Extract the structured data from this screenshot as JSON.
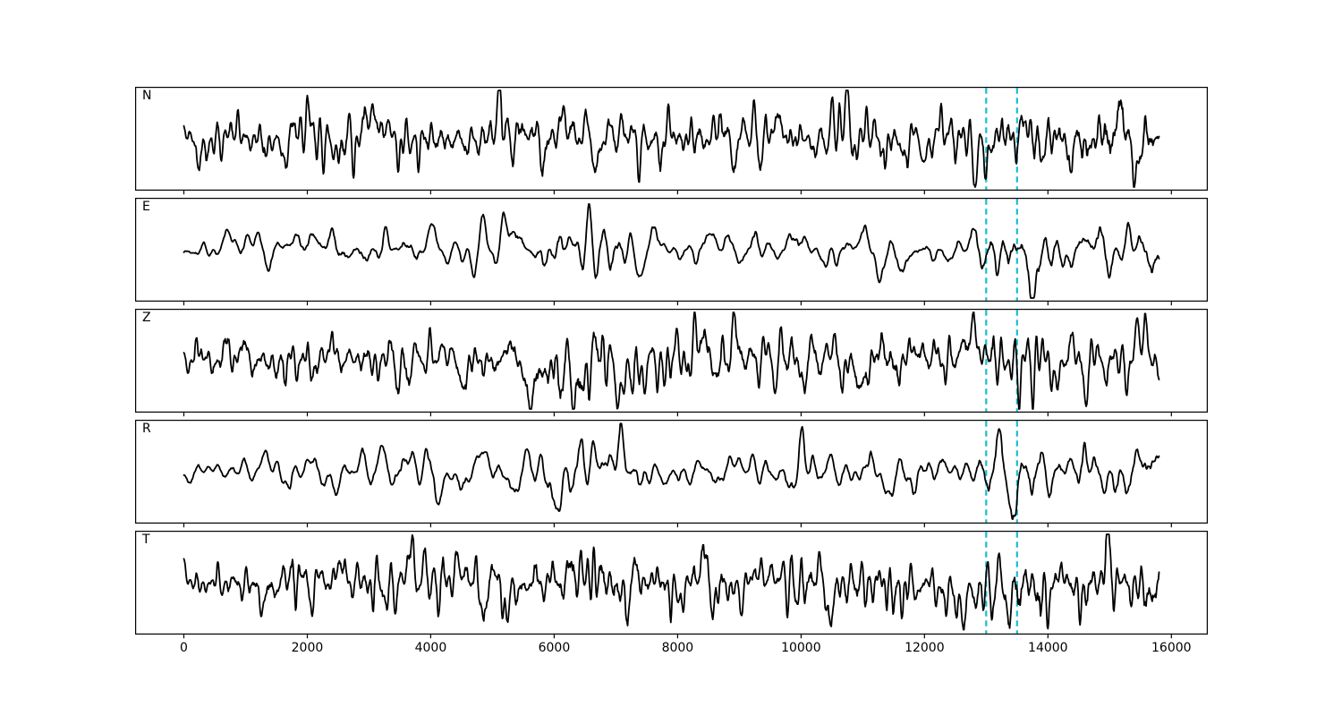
{
  "figure": {
    "background": "#ffffff"
  },
  "chart_data": {
    "type": "line",
    "title": "",
    "xlabel": "",
    "ylabel": "",
    "grid": false,
    "legend": "none",
    "xlim": [
      -790,
      16590
    ],
    "x_start": 0,
    "x_end": 15800,
    "sample_step": 10,
    "x_ticks": [
      0,
      2000,
      4000,
      6000,
      8000,
      10000,
      12000,
      14000,
      16000
    ],
    "x_tick_labels": [
      "0",
      "2000",
      "4000",
      "6000",
      "8000",
      "10000",
      "12000",
      "14000",
      "16000"
    ],
    "trace_color": "#000000",
    "trace_width": 1.8,
    "frame_color": "#000000",
    "event_lines": [
      13000,
      13500
    ],
    "event_line_color": "#17becf",
    "event_line_style": "dashed",
    "subplots": [
      {
        "label": "N",
        "seed": 42,
        "smooth": 2,
        "envelope": [
          [
            0,
            0.55
          ],
          [
            1500,
            0.55
          ],
          [
            3000,
            0.6
          ],
          [
            4500,
            0.55
          ],
          [
            6000,
            0.62
          ],
          [
            7500,
            0.58
          ],
          [
            9000,
            0.55
          ],
          [
            10500,
            0.58
          ],
          [
            12000,
            0.58
          ],
          [
            13000,
            0.62
          ],
          [
            13500,
            0.65
          ],
          [
            14200,
            0.62
          ],
          [
            14900,
            0.8
          ],
          [
            15400,
            0.85
          ],
          [
            15800,
            0.6
          ]
        ]
      },
      {
        "label": "E",
        "seed": 7,
        "smooth": 4,
        "envelope": [
          [
            0,
            0.18
          ],
          [
            500,
            0.25
          ],
          [
            1500,
            0.32
          ],
          [
            2500,
            0.42
          ],
          [
            3500,
            0.46
          ],
          [
            4500,
            0.4
          ],
          [
            5500,
            0.46
          ],
          [
            6300,
            0.66
          ],
          [
            6800,
            0.75
          ],
          [
            7300,
            0.5
          ],
          [
            8200,
            0.34
          ],
          [
            9000,
            0.36
          ],
          [
            9800,
            0.46
          ],
          [
            10800,
            0.46
          ],
          [
            11800,
            0.44
          ],
          [
            12600,
            0.46
          ],
          [
            13000,
            0.6
          ],
          [
            13200,
            0.95
          ],
          [
            13600,
            1.0
          ],
          [
            13900,
            0.85
          ],
          [
            14400,
            0.6
          ],
          [
            14800,
            0.85
          ],
          [
            15200,
            0.62
          ],
          [
            15800,
            0.5
          ]
        ]
      },
      {
        "label": "Z",
        "seed": 1234,
        "smooth": 2,
        "envelope": [
          [
            0,
            0.5
          ],
          [
            800,
            0.55
          ],
          [
            1600,
            0.6
          ],
          [
            3000,
            0.55
          ],
          [
            4400,
            0.6
          ],
          [
            5500,
            0.65
          ],
          [
            6400,
            0.95
          ],
          [
            7000,
            0.62
          ],
          [
            7800,
            0.8
          ],
          [
            8400,
            0.6
          ],
          [
            9500,
            0.6
          ],
          [
            10500,
            0.6
          ],
          [
            11500,
            0.65
          ],
          [
            12500,
            0.6
          ],
          [
            13100,
            0.7
          ],
          [
            13400,
            0.9
          ],
          [
            13900,
            0.6
          ],
          [
            14600,
            0.62
          ],
          [
            15200,
            0.7
          ],
          [
            15800,
            0.55
          ]
        ]
      },
      {
        "label": "R",
        "seed": 99,
        "smooth": 4,
        "envelope": [
          [
            0,
            0.25
          ],
          [
            1000,
            0.35
          ],
          [
            2000,
            0.4
          ],
          [
            3000,
            0.46
          ],
          [
            4000,
            0.45
          ],
          [
            5000,
            0.4
          ],
          [
            6000,
            0.5
          ],
          [
            6600,
            0.65
          ],
          [
            7200,
            0.6
          ],
          [
            8000,
            0.38
          ],
          [
            9000,
            0.4
          ],
          [
            10000,
            0.5
          ],
          [
            11000,
            0.45
          ],
          [
            12000,
            0.44
          ],
          [
            12800,
            0.5
          ],
          [
            13100,
            0.85
          ],
          [
            13400,
            1.0
          ],
          [
            13800,
            0.8
          ],
          [
            14300,
            0.6
          ],
          [
            14800,
            0.82
          ],
          [
            15300,
            0.65
          ],
          [
            15800,
            0.5
          ]
        ]
      },
      {
        "label": "T",
        "seed": 2024,
        "smooth": 2,
        "envelope": [
          [
            0,
            0.45
          ],
          [
            1000,
            0.55
          ],
          [
            2000,
            0.6
          ],
          [
            3000,
            0.55
          ],
          [
            4000,
            0.55
          ],
          [
            5000,
            0.6
          ],
          [
            6000,
            0.62
          ],
          [
            6700,
            0.85
          ],
          [
            7300,
            0.65
          ],
          [
            8000,
            0.6
          ],
          [
            9000,
            0.6
          ],
          [
            10000,
            0.55
          ],
          [
            11000,
            0.6
          ],
          [
            12000,
            0.6
          ],
          [
            12900,
            0.62
          ],
          [
            13300,
            0.75
          ],
          [
            13700,
            0.85
          ],
          [
            14200,
            0.7
          ],
          [
            15000,
            0.72
          ],
          [
            15800,
            0.55
          ]
        ]
      }
    ]
  }
}
